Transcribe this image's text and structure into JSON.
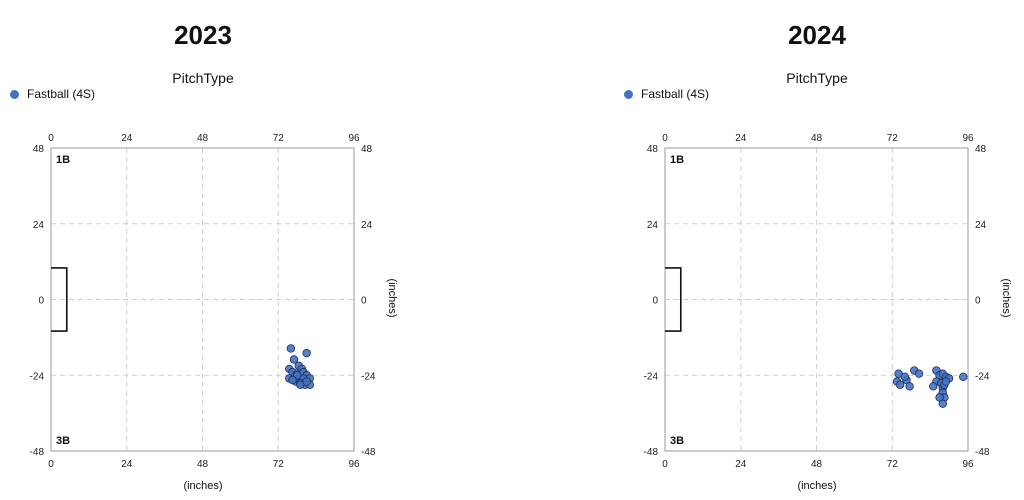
{
  "chart_data": [
    {
      "type": "scatter",
      "title": "2023",
      "legend_title": "PitchType",
      "legend_placement": "top-left",
      "series": [
        {
          "name": "Fastball (4S)",
          "color": "#4472c4",
          "points": [
            [
              76,
              -15.5
            ],
            [
              77,
              -19
            ],
            [
              81,
              -17
            ],
            [
              78.5,
              -21
            ],
            [
              79.5,
              -22
            ],
            [
              75.5,
              -22
            ],
            [
              76.5,
              -23
            ],
            [
              78,
              -23.5
            ],
            [
              80,
              -23
            ],
            [
              81,
              -24
            ],
            [
              77,
              -24.5
            ],
            [
              78.5,
              -25
            ],
            [
              80,
              -25
            ],
            [
              82,
              -25
            ],
            [
              75.5,
              -25
            ],
            [
              77.5,
              -26
            ],
            [
              79,
              -26.5
            ],
            [
              80.5,
              -27
            ],
            [
              82,
              -27
            ],
            [
              79,
              -27
            ],
            [
              81,
              -26
            ],
            [
              78,
              -24
            ],
            [
              76.5,
              -25.5
            ]
          ]
        }
      ],
      "xlabel": "(inches)",
      "ylabel": "(inches)",
      "xlim": [
        0,
        96
      ],
      "ylim": [
        -48,
        48
      ],
      "x_ticks": [
        0,
        24,
        48,
        72,
        96
      ],
      "y_ticks": [
        48,
        24,
        0,
        -24,
        -48
      ],
      "grid": true,
      "corner_labels": {
        "top_left": "1B",
        "bottom_left": "3B"
      },
      "base_box": {
        "x": [
          0,
          5
        ],
        "y": [
          -10,
          10
        ]
      }
    },
    {
      "type": "scatter",
      "title": "2024",
      "legend_title": "PitchType",
      "legend_placement": "top-left",
      "series": [
        {
          "name": "Fastball (4S)",
          "color": "#4472c4",
          "points": [
            [
              74,
              -23.5
            ],
            [
              73.5,
              -26
            ],
            [
              74.5,
              -27
            ],
            [
              76.5,
              -25.5
            ],
            [
              77.5,
              -27.5
            ],
            [
              76,
              -24.5
            ],
            [
              79,
              -22.5
            ],
            [
              80.5,
              -23.5
            ],
            [
              86,
              -22.5
            ],
            [
              87,
              -24
            ],
            [
              88,
              -23.5
            ],
            [
              89,
              -24.5
            ],
            [
              94.5,
              -24.5
            ],
            [
              86,
              -26
            ],
            [
              87.5,
              -26.5
            ],
            [
              85,
              -27.5
            ],
            [
              88,
              -28
            ],
            [
              88.5,
              -27
            ],
            [
              88,
              -29.5
            ],
            [
              88.5,
              -31
            ],
            [
              88,
              -33
            ],
            [
              87,
              -31
            ],
            [
              90,
              -25
            ],
            [
              89,
              -26
            ]
          ]
        }
      ],
      "xlabel": "(inches)",
      "ylabel": "(inches)",
      "xlim": [
        0,
        96
      ],
      "ylim": [
        -48,
        48
      ],
      "x_ticks": [
        0,
        24,
        48,
        72,
        96
      ],
      "y_ticks": [
        48,
        24,
        0,
        -24,
        -48
      ],
      "grid": true,
      "corner_labels": {
        "top_left": "1B",
        "bottom_left": "3B"
      },
      "base_box": {
        "x": [
          0,
          5
        ],
        "y": [
          -10,
          10
        ]
      }
    }
  ]
}
